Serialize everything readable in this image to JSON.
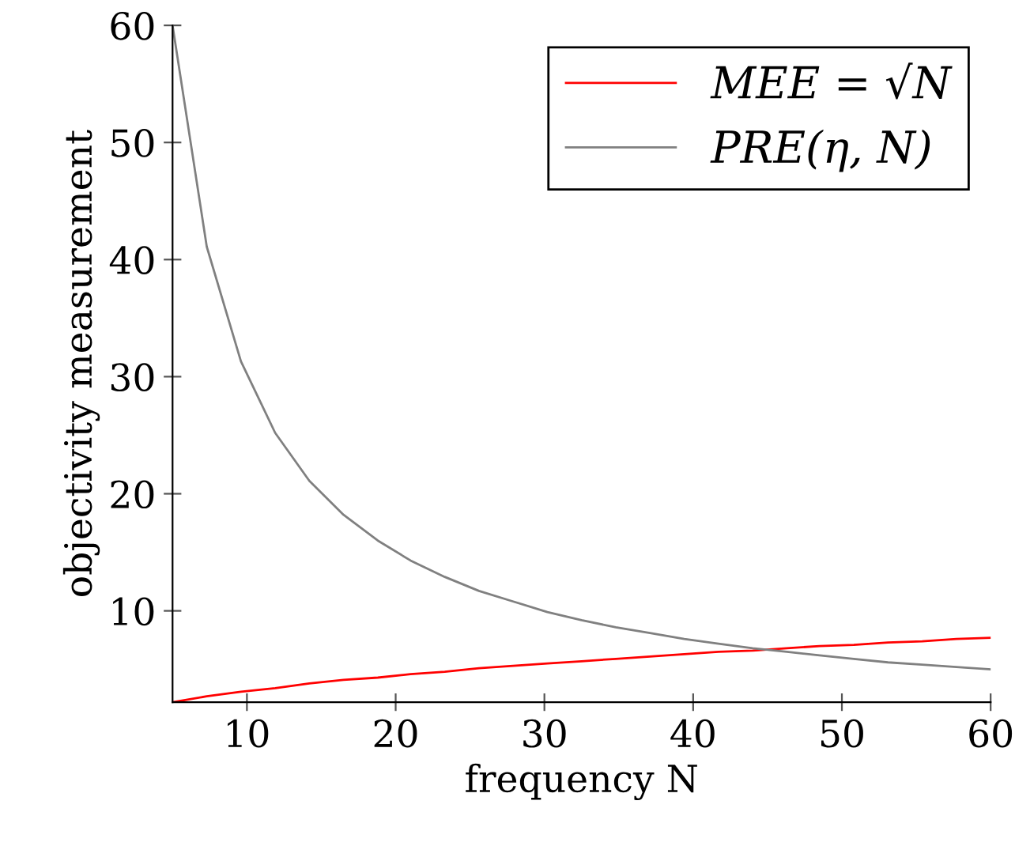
{
  "chart_data": {
    "type": "line",
    "xlabel": "frequency N",
    "ylabel": "objectivity measurement",
    "x": [
      5,
      7.3,
      9.6,
      11.9,
      14.2,
      16.5,
      18.8,
      21,
      23.3,
      25.6,
      27.9,
      30.2,
      32.5,
      34.8,
      37.1,
      39.4,
      41.7,
      44,
      46.3,
      48.5,
      50.8,
      53.1,
      55.4,
      57.7,
      60
    ],
    "series": [
      {
        "name": "MEE = √N",
        "color": "#ff0000",
        "values": [
          2.2,
          2.7,
          3.1,
          3.4,
          3.8,
          4.1,
          4.3,
          4.6,
          4.8,
          5.1,
          5.3,
          5.5,
          5.7,
          5.9,
          6.1,
          6.3,
          6.5,
          6.6,
          6.8,
          7,
          7.1,
          7.3,
          7.4,
          7.6,
          7.7
        ]
      },
      {
        "name": "PRE(η, N)",
        "color": "#808080",
        "values": [
          60,
          41.1,
          31.3,
          25.2,
          21.1,
          18.2,
          16,
          14.3,
          12.9,
          11.7,
          10.8,
          9.9,
          9.2,
          8.6,
          8.1,
          7.6,
          7.2,
          6.8,
          6.5,
          6.2,
          5.9,
          5.6,
          5.4,
          5.2,
          5
        ]
      }
    ],
    "xlim": [
      5,
      60
    ],
    "ylim": [
      2.2,
      60
    ],
    "xticks": [
      10,
      20,
      30,
      40,
      50,
      60
    ],
    "yticks": [
      10,
      20,
      30,
      40,
      50,
      60
    ],
    "legend": "top right",
    "grid": false,
    "marker": "none",
    "line_style": "solid"
  }
}
